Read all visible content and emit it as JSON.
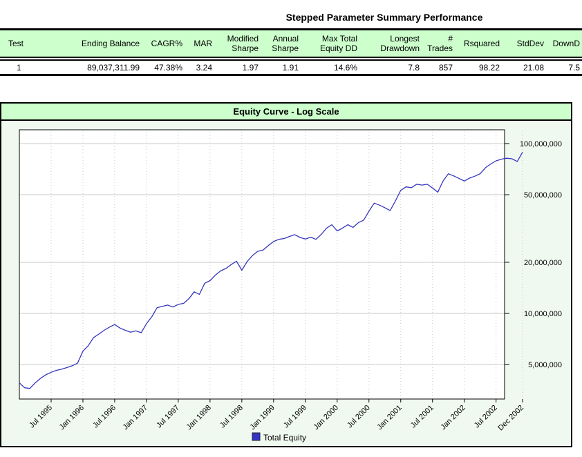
{
  "report": {
    "title": "Stepped Parameter Summary Performance"
  },
  "summary_table": {
    "headers": [
      "Test",
      "Ending Balance",
      "CAGR%",
      "MAR",
      "Modified\nSharpe",
      "Annual\nSharpe",
      "Max Total\nEquity DD",
      "Longest\nDrawdown",
      "# Trades",
      "Rsquared",
      "StdDev",
      "DownD"
    ],
    "row": [
      "1",
      "89,037,311.99",
      "47.38%",
      "3.24",
      "1.97",
      "1.91",
      "14.6%",
      "7.8",
      "857",
      "98.22",
      "21.08",
      "7.5"
    ]
  },
  "chart_data": {
    "type": "line",
    "title": "Equity Curve - Log Scale",
    "y_scale": "log",
    "ylim": [
      3130000,
      120000000
    ],
    "grid": {
      "horizontal": "solid",
      "vertical": "dotted"
    },
    "legend_position": "bottom-center",
    "legend": [
      {
        "label": "Total Equity",
        "color": "#3333CC"
      }
    ],
    "y_ticks": [
      {
        "label": "100,000,000",
        "value": 100000000
      },
      {
        "label": "50,000,000",
        "value": 50000000
      },
      {
        "label": "20,000,000",
        "value": 20000000
      },
      {
        "label": "10,000,000",
        "value": 10000000
      },
      {
        "label": "5,000,000",
        "value": 5000000
      }
    ],
    "x_ticks": [
      {
        "label": "Jul 1995",
        "month": 6
      },
      {
        "label": "Jan 1996",
        "month": 12
      },
      {
        "label": "Jul 1996",
        "month": 18
      },
      {
        "label": "Jan 1997",
        "month": 24
      },
      {
        "label": "Jul 1997",
        "month": 30
      },
      {
        "label": "Jan 1998",
        "month": 36
      },
      {
        "label": "Jul 1998",
        "month": 42
      },
      {
        "label": "Jan 1999",
        "month": 48
      },
      {
        "label": "Jul 1999",
        "month": 54
      },
      {
        "label": "Jan 2000",
        "month": 60
      },
      {
        "label": "Jul 2000",
        "month": 66
      },
      {
        "label": "Jan 2001",
        "month": 72
      },
      {
        "label": "Jul 2001",
        "month": 78
      },
      {
        "label": "Jan 2002",
        "month": 84
      },
      {
        "label": "Jul 2002",
        "month": 90
      },
      {
        "label": "Dec 2002",
        "month": 95
      }
    ],
    "series": [
      {
        "name": "Total Equity",
        "color": "#3535BD",
        "start": "Jan 1995",
        "interval": "monthly",
        "values": [
          3900000,
          3650000,
          3620000,
          3900000,
          4150000,
          4350000,
          4500000,
          4620000,
          4700000,
          4800000,
          4920000,
          5100000,
          6000000,
          6450000,
          7200000,
          7550000,
          7950000,
          8300000,
          8600000,
          8200000,
          7950000,
          7750000,
          7900000,
          7700000,
          8700000,
          9550000,
          10800000,
          11000000,
          11200000,
          10900000,
          11300000,
          11450000,
          12200000,
          13400000,
          12950000,
          15050000,
          15600000,
          16800000,
          17800000,
          18400000,
          19400000,
          20300000,
          17950000,
          20200000,
          21900000,
          23200000,
          23600000,
          25100000,
          26500000,
          27300000,
          27600000,
          28400000,
          29100000,
          28000000,
          27400000,
          28100000,
          27300000,
          29200000,
          31800000,
          33300000,
          30600000,
          31800000,
          33300000,
          32100000,
          34200000,
          35400000,
          40000000,
          44600000,
          43400000,
          41900000,
          40300000,
          46000000,
          53000000,
          55600000,
          55000000,
          57600000,
          57000000,
          57600000,
          54800000,
          51800000,
          60300000,
          66400000,
          64500000,
          62400000,
          60200000,
          62600000,
          64300000,
          66500000,
          72100000,
          75900000,
          79100000,
          80900000,
          82000000,
          81400000,
          78500000,
          89037311.99
        ]
      }
    ]
  }
}
